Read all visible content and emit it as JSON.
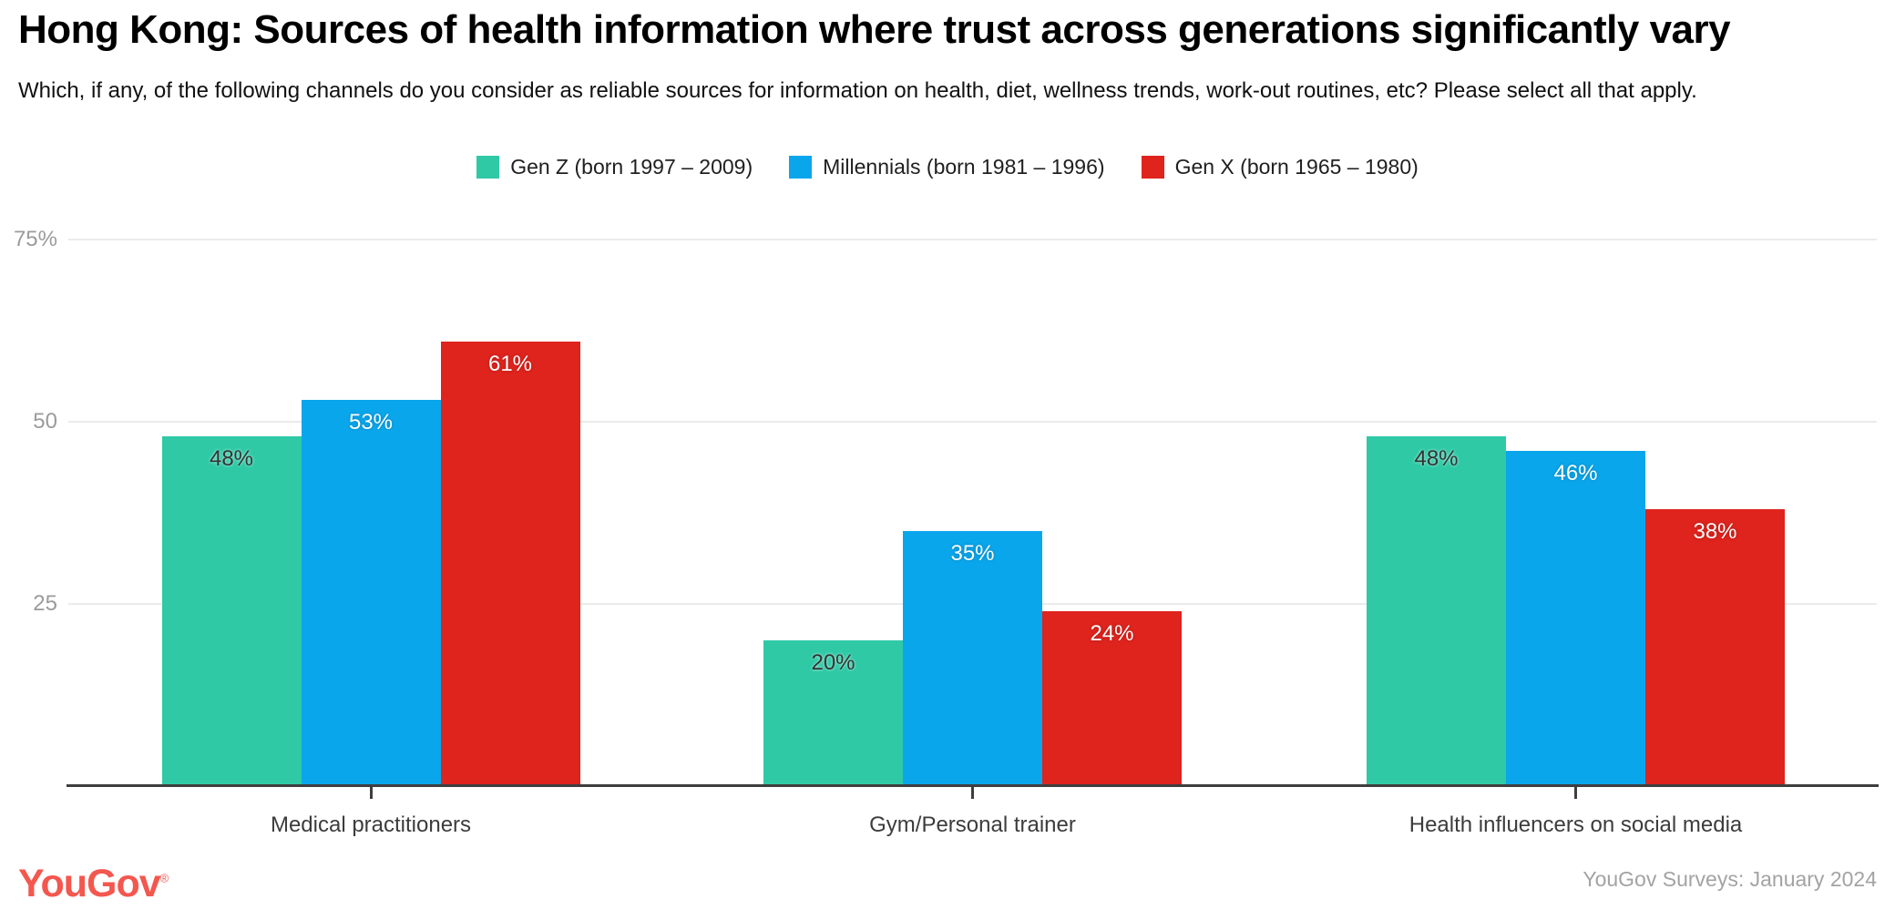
{
  "header": {
    "title": "Hong Kong: Sources of health information where trust across generations significantly vary",
    "subtitle": "Which, if any, of the following channels do you consider as reliable sources for information on health, diet, wellness trends, work-out routines, etc? Please select all that apply."
  },
  "colors": {
    "gen_z": "#2fc9a6",
    "millennials": "#0aa6ec",
    "gen_x": "#df231d",
    "axis": "#3e3e3e",
    "gridline": "#ebebeb",
    "tick_label": "#9b9b9b",
    "logo": "#f4574e"
  },
  "chart_data": {
    "type": "bar",
    "title": "Hong Kong: Sources of health information where trust across generations significantly vary",
    "subtitle": "Which, if any, of the following channels do you consider as reliable sources for information on health, diet, wellness trends, work-out routines, etc? Please select all that apply.",
    "categories": [
      "Medical practitioners",
      "Gym/Personal trainer",
      "Health influencers on social media"
    ],
    "series": [
      {
        "name": "Gen Z (born 1997 – 2009)",
        "color": "#2fc9a6",
        "label_color": "#333333",
        "label_style": "dark",
        "values": [
          48,
          20,
          48
        ]
      },
      {
        "name": "Millennials (born 1981 – 1996)",
        "color": "#0aa6ec",
        "label_color": "#ffffff",
        "label_style": "light",
        "values": [
          53,
          35,
          46
        ]
      },
      {
        "name": "Gen X (born 1965 – 1980)",
        "color": "#df231d",
        "label_color": "#ffffff",
        "label_style": "light",
        "values": [
          61,
          24,
          38
        ]
      }
    ],
    "value_suffix": "%",
    "data_labels": [
      "48%",
      "53%",
      "61%",
      "20%",
      "35%",
      "24%",
      "48%",
      "46%",
      "38%"
    ],
    "yticks": [
      {
        "value": 25,
        "label": "25"
      },
      {
        "value": 50,
        "label": "50"
      },
      {
        "value": 75,
        "label": "75%"
      }
    ],
    "ylim": [
      0,
      78
    ],
    "xlabel": "",
    "ylabel": "",
    "grid": true,
    "legend_position": "top"
  },
  "footer": {
    "logo_text": "YouGov",
    "logo_reg": "®",
    "source": "YouGov Surveys: January 2024"
  }
}
